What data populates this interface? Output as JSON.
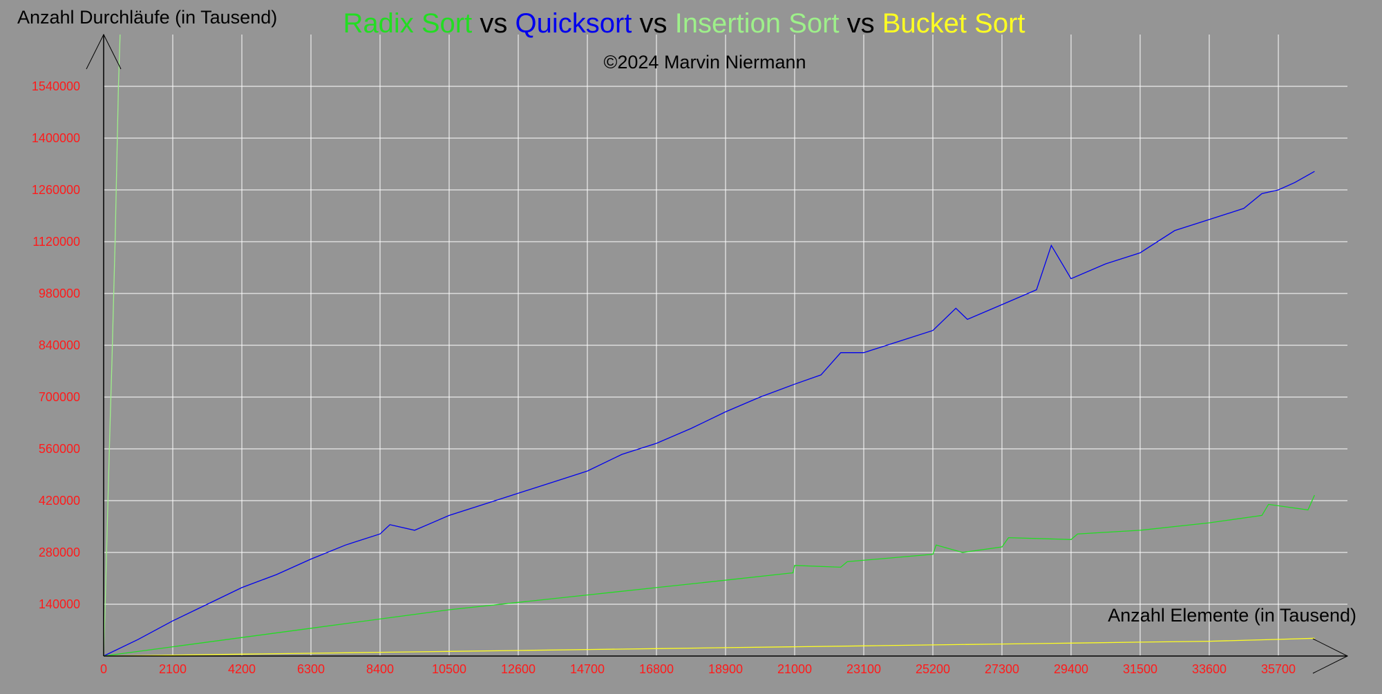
{
  "chart_data": {
    "type": "line",
    "title_parts": [
      {
        "text": "Radix Sort",
        "color": "#22dd22",
        "role": "series"
      },
      {
        "text": " vs ",
        "color": "#000000",
        "role": "sep"
      },
      {
        "text": "Quicksort",
        "color": "#0000ee",
        "role": "series"
      },
      {
        "text": " vs ",
        "color": "#000000",
        "role": "sep"
      },
      {
        "text": "Insertion Sort",
        "color": "#9ef08a",
        "role": "series"
      },
      {
        "text": " vs ",
        "color": "#000000",
        "role": "sep"
      },
      {
        "text": "Bucket Sort",
        "color": "#ffff22",
        "role": "series"
      }
    ],
    "subtitle": "©2024 Marvin Niermann",
    "ylabel": "Anzahl Durchläufe (in Tausend)",
    "xlabel": "Anzahl Elemente (in Tausend)",
    "xlim": [
      0,
      37800
    ],
    "ylim": [
      0,
      1680000
    ],
    "x_ticks": [
      0,
      2100,
      4200,
      6300,
      8400,
      10500,
      12600,
      14700,
      16800,
      18900,
      21000,
      23100,
      25200,
      27300,
      29400,
      31500,
      33600,
      35700
    ],
    "y_ticks": [
      140000,
      280000,
      420000,
      560000,
      700000,
      840000,
      980000,
      1120000,
      1260000,
      1400000,
      1540000
    ],
    "grid": true,
    "colors": {
      "background": "#959595",
      "grid": "#ffffff",
      "axis": "#000000",
      "tick_labels": "#ff1a1a"
    },
    "series": [
      {
        "name": "Quicksort",
        "color": "#0000ee",
        "x": [
          0,
          1050,
          2100,
          3150,
          4200,
          5250,
          6300,
          7350,
          8400,
          8700,
          9450,
          10500,
          11550,
          12600,
          13650,
          14700,
          15750,
          16800,
          17850,
          18900,
          19950,
          21000,
          21800,
          22400,
          23100,
          24150,
          25200,
          25900,
          26250,
          27300,
          28350,
          28800,
          29400,
          30450,
          31500,
          32550,
          33600,
          34650,
          35200,
          35700,
          36200,
          36800
        ],
        "y": [
          0,
          45000,
          95000,
          140000,
          185000,
          220000,
          262000,
          300000,
          330000,
          355000,
          340000,
          380000,
          410000,
          440000,
          470000,
          500000,
          545000,
          575000,
          615000,
          660000,
          700000,
          735000,
          760000,
          820000,
          820000,
          850000,
          880000,
          940000,
          910000,
          950000,
          990000,
          1110000,
          1020000,
          1060000,
          1090000,
          1150000,
          1180000,
          1210000,
          1250000,
          1260000,
          1280000,
          1310000
        ]
      },
      {
        "name": "Radix Sort",
        "color": "#22dd22",
        "x": [
          0,
          2100,
          4200,
          6300,
          8400,
          10500,
          12600,
          14700,
          16800,
          18900,
          20950,
          21000,
          22400,
          22600,
          25200,
          25300,
          26100,
          27300,
          27500,
          29400,
          29600,
          31500,
          33600,
          35200,
          35400,
          36600,
          36800
        ],
        "y": [
          0,
          25000,
          50000,
          75000,
          100000,
          125000,
          145000,
          165000,
          185000,
          205000,
          225000,
          245000,
          240000,
          255000,
          275000,
          300000,
          280000,
          295000,
          320000,
          315000,
          330000,
          340000,
          360000,
          380000,
          410000,
          395000,
          435000
        ]
      },
      {
        "name": "Insertion Sort",
        "color": "#9ef08a",
        "x": [
          0,
          50,
          100,
          150,
          200,
          250,
          300,
          350,
          400,
          450,
          500
        ],
        "y": [
          0,
          150000,
          320000,
          480000,
          640000,
          790000,
          960000,
          1130000,
          1330000,
          1540000,
          1680000
        ]
      },
      {
        "name": "Bucket Sort",
        "color": "#ffff22",
        "x": [
          0,
          2100,
          4200,
          6300,
          8400,
          10500,
          12600,
          14700,
          16800,
          18900,
          21000,
          23100,
          25200,
          27300,
          29400,
          31500,
          33600,
          35700,
          36800
        ],
        "y": [
          0,
          2500,
          5000,
          7500,
          10000,
          12500,
          15000,
          17500,
          20000,
          22500,
          25000,
          27500,
          30000,
          32500,
          35000,
          37500,
          40000,
          45000,
          48000
        ]
      }
    ]
  }
}
